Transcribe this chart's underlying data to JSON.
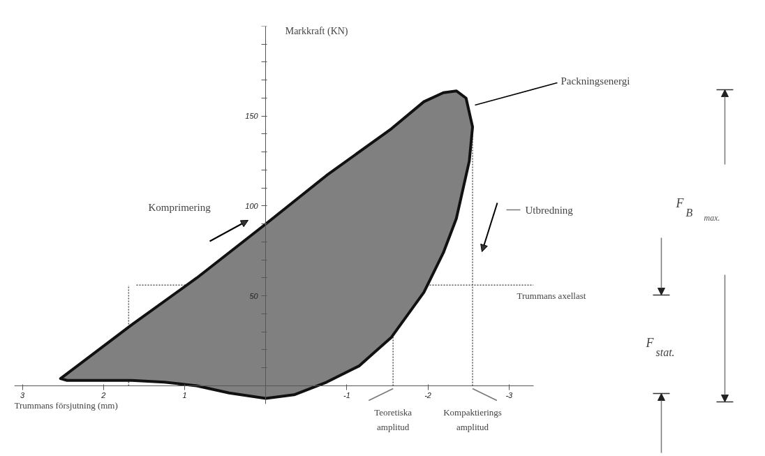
{
  "chart_data": {
    "type": "area",
    "xlabel": "Trummans försjutning (mm)",
    "ylabel": "Markkraft (KN)",
    "xlim": [
      3.1,
      -3.3
    ],
    "ylim": [
      -10,
      200
    ],
    "xticks": [
      3,
      2,
      1,
      -1,
      -2,
      -3
    ],
    "yticks": [
      {
        "value": 10,
        "label": null
      },
      {
        "value": 20,
        "label": null
      },
      {
        "value": 30,
        "label": null
      },
      {
        "value": 40,
        "label": null
      },
      50,
      {
        "value": 60,
        "label": null
      },
      {
        "value": 70,
        "label": null
      },
      {
        "value": 80,
        "label": null
      },
      {
        "value": 90,
        "label": null
      },
      100,
      {
        "value": 110,
        "label": null
      },
      {
        "value": 120,
        "label": null
      },
      {
        "value": 130,
        "label": null
      },
      {
        "value": 140,
        "label": null
      },
      150,
      {
        "value": 160,
        "label": null
      },
      {
        "value": 170,
        "label": null
      },
      {
        "value": 180,
        "label": null
      },
      {
        "value": 190,
        "label": null
      },
      {
        "value": 200,
        "label": null
      }
    ],
    "series": [
      {
        "color": "#808080",
        "x": [
          2.53,
          1.65,
          0.85,
          0.0,
          -0.75,
          -1.55,
          -1.95,
          -2.19,
          -2.35,
          -2.47,
          -2.55,
          -2.51,
          -2.35,
          -2.19,
          -1.95,
          -1.55,
          -1.15,
          -0.75,
          -0.35,
          0.0,
          0.45,
          0.85,
          1.25,
          1.65,
          2.05,
          2.45
        ],
        "values": [
          4,
          34,
          60,
          90,
          117,
          143,
          158,
          163,
          164,
          160,
          144,
          125,
          93,
          74,
          52,
          27,
          11,
          2,
          -5,
          -7,
          -4,
          0,
          2,
          3,
          3,
          3
        ]
      }
    ],
    "ref_lines": [
      {
        "axis": "y",
        "value": 56,
        "label": "Trummans axellast",
        "color": "#555555",
        "line_style": "dotted"
      },
      {
        "axis": "x",
        "value": 1.69,
        "color": "#555555",
        "line_style": "dotted"
      },
      {
        "axis": "x",
        "value": -1.57,
        "label": "Teoretiska amplitud",
        "color": "#555555",
        "line_style": "dotted"
      },
      {
        "axis": "x",
        "value": -2.55,
        "label": "Kompaktierings amplitud",
        "color": "#555555",
        "line_style": "dotted"
      }
    ],
    "annotations": [
      "Packningsenergi",
      "Komprimering",
      "Utbredning",
      "F$_{B}$ max.",
      "F$_{stat.}$"
    ]
  }
}
